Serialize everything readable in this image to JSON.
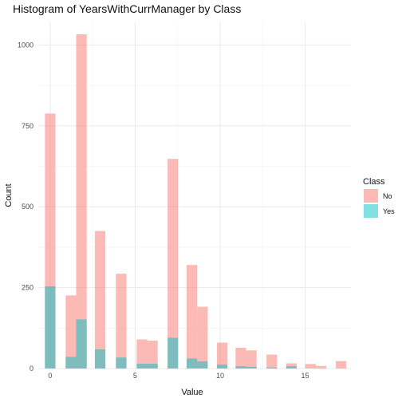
{
  "chart_data": {
    "type": "bar",
    "title": "Histogram of YearsWithCurrManager by Class",
    "xlabel": "Value",
    "ylabel": "Count",
    "xlim": [
      -0.7,
      17.7
    ],
    "ylim": [
      0,
      1070
    ],
    "x_ticks": [
      0,
      5,
      10,
      15
    ],
    "y_ticks": [
      0,
      250,
      500,
      750,
      1000
    ],
    "grid": true,
    "stacked": false,
    "bin_width": 0.62,
    "x": [
      0,
      1.22,
      1.84,
      2.94,
      4.18,
      5.4,
      6.02,
      7.22,
      8.34,
      8.96,
      10.12,
      11.22,
      11.84,
      13.04,
      14.2,
      15.32,
      15.94,
      17.12
    ],
    "series": [
      {
        "name": "No",
        "values": [
          788,
          226,
          1033,
          425,
          293,
          90,
          86,
          648,
          320,
          191,
          80,
          64,
          56,
          43,
          16,
          14,
          8,
          23
        ]
      },
      {
        "name": "Yes",
        "values": [
          254,
          36,
          152,
          59,
          34,
          15,
          15,
          95,
          31,
          22,
          12,
          7,
          5,
          3,
          7,
          0,
          0,
          0
        ]
      }
    ],
    "legend": {
      "title": "Class",
      "position": "right"
    },
    "colors": {
      "No": "#f8766d",
      "Yes": "#00bfc4"
    },
    "opacity": 0.5
  }
}
